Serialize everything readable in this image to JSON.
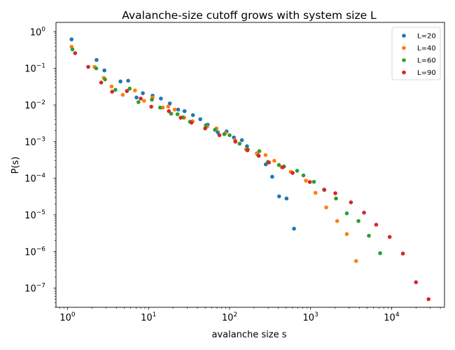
{
  "chart_data": {
    "type": "scatter",
    "title": "Avalanche-size cutoff grows with system size L",
    "xlabel": "avalanche size s",
    "ylabel": "P(s)",
    "xscale": "log",
    "yscale": "log",
    "xlim": [
      0.72,
      45000
    ],
    "ylim": [
      3e-08,
      1.8
    ],
    "grid": false,
    "legend_position": "top-right",
    "x_ticks": [
      {
        "value": 1,
        "base": "10",
        "exp": "0"
      },
      {
        "value": 10,
        "base": "10",
        "exp": "1"
      },
      {
        "value": 100,
        "base": "10",
        "exp": "2"
      },
      {
        "value": 1000,
        "base": "10",
        "exp": "3"
      },
      {
        "value": 10000,
        "base": "10",
        "exp": "4"
      }
    ],
    "y_ticks": [
      {
        "value": 1,
        "base": "10",
        "exp": "0"
      },
      {
        "value": 0.1,
        "base": "10",
        "exp": "−1"
      },
      {
        "value": 0.01,
        "base": "10",
        "exp": "−2"
      },
      {
        "value": 0.001,
        "base": "10",
        "exp": "−3"
      },
      {
        "value": 0.0001,
        "base": "10",
        "exp": "−4"
      },
      {
        "value": 1e-05,
        "base": "10",
        "exp": "−5"
      },
      {
        "value": 1e-06,
        "base": "10",
        "exp": "−6"
      },
      {
        "value": 1e-07,
        "base": "10",
        "exp": "−7"
      }
    ],
    "series": [
      {
        "name": "L=20",
        "color": "#1f77b4",
        "points": [
          [
            1.12,
            0.62
          ],
          [
            2.28,
            0.17
          ],
          [
            2.85,
            0.088
          ],
          [
            4.5,
            0.044
          ],
          [
            5.6,
            0.046
          ],
          [
            7.1,
            0.016
          ],
          [
            8.5,
            0.021
          ],
          [
            11.2,
            0.018
          ],
          [
            14.2,
            0.015
          ],
          [
            18.3,
            0.011
          ],
          [
            23.2,
            0.0075
          ],
          [
            27.8,
            0.0068
          ],
          [
            35.3,
            0.0053
          ],
          [
            43.5,
            0.0041
          ],
          [
            53.7,
            0.0029
          ],
          [
            71.5,
            0.0018
          ],
          [
            91.8,
            0.0019
          ],
          [
            113.0,
            0.0013
          ],
          [
            142.0,
            0.0011
          ],
          [
            164.0,
            0.00075
          ],
          [
            221.0,
            0.00045
          ],
          [
            280.0,
            0.00024
          ],
          [
            336.0,
            0.00011
          ],
          [
            409.0,
            3.2e-05
          ],
          [
            505.0,
            2.8e-05
          ],
          [
            625.0,
            4.2e-06
          ]
        ]
      },
      {
        "name": "L=40",
        "color": "#ff7f0e",
        "points": [
          [
            1.12,
            0.39
          ],
          [
            2.15,
            0.11
          ],
          [
            2.8,
            0.055
          ],
          [
            3.5,
            0.032
          ],
          [
            4.8,
            0.019
          ],
          [
            6.8,
            0.025
          ],
          [
            8.8,
            0.013
          ],
          [
            11.2,
            0.016
          ],
          [
            15.0,
            0.0085
          ],
          [
            17.5,
            0.0091
          ],
          [
            21.0,
            0.0075
          ],
          [
            27.5,
            0.0045
          ],
          [
            35.0,
            0.0036
          ],
          [
            53.0,
            0.0026
          ],
          [
            69.0,
            0.0023
          ],
          [
            88.5,
            0.0017
          ],
          [
            117.0,
            0.0011
          ],
          [
            160.0,
            0.00062
          ],
          [
            217.0,
            0.00048
          ],
          [
            278.0,
            0.00043
          ],
          [
            357.0,
            0.0003
          ],
          [
            440.0,
            0.0002
          ],
          [
            569.0,
            0.00015
          ],
          [
            877.0,
            8.6e-05
          ],
          [
            1150.0,
            4e-05
          ],
          [
            1560.0,
            1.6e-05
          ],
          [
            2130.0,
            6.8e-06
          ],
          [
            2800.0,
            3e-06
          ],
          [
            3650.0,
            5.5e-07
          ]
        ]
      },
      {
        "name": "L=60",
        "color": "#2ca02c",
        "points": [
          [
            1.15,
            0.33
          ],
          [
            2.26,
            0.1
          ],
          [
            2.9,
            0.05
          ],
          [
            3.9,
            0.026
          ],
          [
            5.85,
            0.028
          ],
          [
            7.5,
            0.012
          ],
          [
            11.0,
            0.014
          ],
          [
            13.9,
            0.0085
          ],
          [
            19.0,
            0.0058
          ],
          [
            22.8,
            0.0056
          ],
          [
            26.5,
            0.0046
          ],
          [
            32.5,
            0.0035
          ],
          [
            51.0,
            0.0028
          ],
          [
            66.0,
            0.0021
          ],
          [
            86.0,
            0.0016
          ],
          [
            100.0,
            0.0015
          ],
          [
            133.0,
            0.00088
          ],
          [
            168.0,
            0.00061
          ],
          [
            233.0,
            0.00055
          ],
          [
            298.0,
            0.00028
          ],
          [
            407.0,
            0.00023
          ],
          [
            470.0,
            0.00021
          ],
          [
            683.0,
            0.00016
          ],
          [
            817.0,
            0.00012
          ],
          [
            1100.0,
            8e-05
          ],
          [
            1480.0,
            4.8e-05
          ],
          [
            2060.0,
            2.8e-05
          ],
          [
            2800.0,
            1.1e-05
          ],
          [
            3900.0,
            6.8e-06
          ],
          [
            5250.0,
            2.7e-06
          ],
          [
            7230.0,
            9e-07
          ]
        ]
      },
      {
        "name": "L=90",
        "color": "#d62728",
        "points": [
          [
            1.24,
            0.26
          ],
          [
            1.8,
            0.11
          ],
          [
            2.6,
            0.041
          ],
          [
            3.55,
            0.023
          ],
          [
            5.4,
            0.024
          ],
          [
            8.0,
            0.015
          ],
          [
            10.8,
            0.009
          ],
          [
            17.8,
            0.0068
          ],
          [
            24.9,
            0.0045
          ],
          [
            33.9,
            0.0033
          ],
          [
            50.0,
            0.0023
          ],
          [
            75.0,
            0.0015
          ],
          [
            118.0,
            0.001
          ],
          [
            166.0,
            0.00058
          ],
          [
            229.0,
            0.00041
          ],
          [
            306.0,
            0.00027
          ],
          [
            454.0,
            0.0002
          ],
          [
            601.0,
            0.00014
          ],
          [
            980.0,
            7.9e-05
          ],
          [
            1470.0,
            4.9e-05
          ],
          [
            2020.0,
            3.9e-05
          ],
          [
            3150.0,
            2.2e-05
          ],
          [
            4570.0,
            1.15e-05
          ],
          [
            6460.0,
            5.4e-06
          ],
          [
            9470.0,
            2.5e-06
          ],
          [
            13800.0,
            8.8e-07
          ],
          [
            20000.0,
            1.45e-07
          ],
          [
            28600.0,
            5e-08
          ]
        ]
      }
    ]
  }
}
